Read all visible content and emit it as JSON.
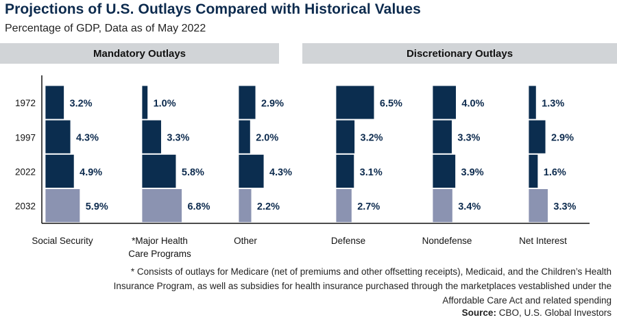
{
  "header": {
    "title": "Projections of U.S. Outlays Compared with Historical Values",
    "subtitle": "Percentage of GDP, Data as of May 2022",
    "groups": [
      "Mandatory Outlays",
      "Discretionary Outlays"
    ]
  },
  "chart_data": {
    "type": "bar",
    "orientation": "horizontal",
    "title": "Projections of U.S. Outlays Compared with Historical Values",
    "subtitle": "Percentage of GDP, Data as of May 2022",
    "unit": "% of GDP",
    "years": [
      "1972",
      "1997",
      "2022",
      "2032"
    ],
    "projected_year": "2032",
    "colors": {
      "historical": "#0b2d4f",
      "projected": "#8b93b1",
      "label": "#0d2b4e"
    },
    "categories": [
      {
        "name": "Social Security",
        "group": "Mandatory Outlays",
        "values": [
          3.2,
          4.3,
          4.9,
          5.9
        ],
        "labels": [
          "3.2%",
          "4.3%",
          "4.9%",
          "5.9%"
        ]
      },
      {
        "name": "*Major Health\nCare Programs",
        "group": "Mandatory Outlays",
        "values": [
          1.0,
          3.3,
          5.8,
          6.8
        ],
        "labels": [
          "1.0%",
          "3.3%",
          "5.8%",
          "6.8%"
        ]
      },
      {
        "name": "Other",
        "group": "Mandatory Outlays",
        "values": [
          2.9,
          2.0,
          4.3,
          2.2
        ],
        "labels": [
          "2.9%",
          "2.0%",
          "4.3%",
          "2.2%"
        ]
      },
      {
        "name": "Defense",
        "group": "Discretionary Outlays",
        "values": [
          6.5,
          3.2,
          3.1,
          2.7
        ],
        "labels": [
          "6.5%",
          "3.2%",
          "3.1%",
          "2.7%"
        ]
      },
      {
        "name": "Nondefense",
        "group": "Discretionary Outlays",
        "values": [
          4.0,
          3.3,
          3.9,
          3.4
        ],
        "labels": [
          "4.0%",
          "3.3%",
          "3.9%",
          "3.4%"
        ]
      },
      {
        "name": "Net Interest",
        "group": "Discretionary Outlays",
        "values": [
          1.3,
          2.9,
          1.6,
          3.3
        ],
        "labels": [
          "1.3%",
          "2.9%",
          "1.6%",
          "3.3%"
        ]
      }
    ],
    "grid": false,
    "legend": "none"
  },
  "footer": {
    "footnote": "* Consists of outlays for Medicare (net of premiums and other offsetting receipts), Medicaid, and the Children’s Health Insurance Program, as well as subsidies for health insurance purchased through the marketplaces vestablished under the Affordable Care Act and related spending",
    "source_label": "Source:",
    "source_text": " CBO, U.S. Global Investors"
  }
}
